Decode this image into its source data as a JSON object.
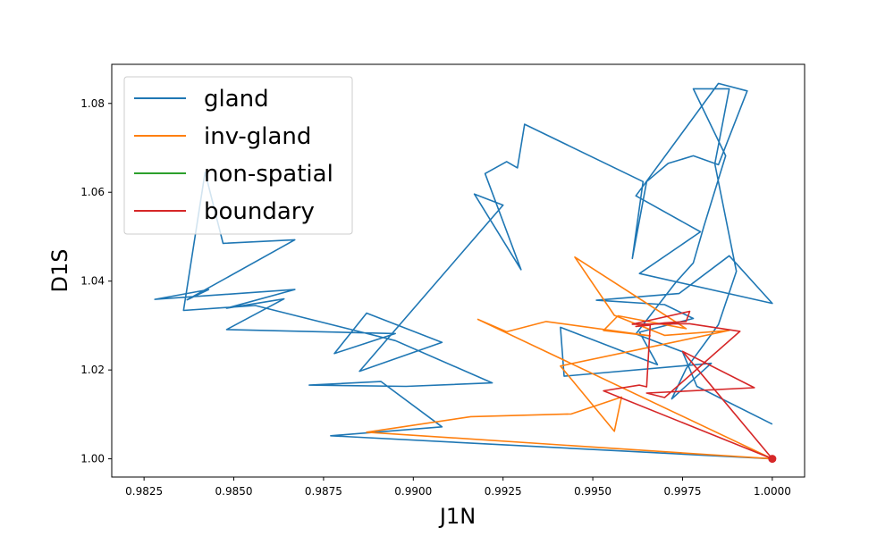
{
  "chart_data": {
    "type": "line",
    "xlabel": "J1N",
    "ylabel": "D1S",
    "xlim": [
      0.9816,
      1.0009
    ],
    "ylim": [
      0.9959,
      1.0888
    ],
    "xticks": [
      {
        "value": 0.9825,
        "label": "0.9825"
      },
      {
        "value": 0.985,
        "label": "0.9850"
      },
      {
        "value": 0.9875,
        "label": "0.9875"
      },
      {
        "value": 0.99,
        "label": "0.9900"
      },
      {
        "value": 0.9925,
        "label": "0.9925"
      },
      {
        "value": 0.995,
        "label": "0.9950"
      },
      {
        "value": 0.9975,
        "label": "0.9975"
      },
      {
        "value": 1.0,
        "label": "1.0000"
      }
    ],
    "yticks": [
      {
        "value": 1.0,
        "label": "1.00"
      },
      {
        "value": 1.02,
        "label": "1.02"
      },
      {
        "value": 1.04,
        "label": "1.04"
      },
      {
        "value": 1.06,
        "label": "1.06"
      },
      {
        "value": 1.08,
        "label": "1.08"
      }
    ],
    "grid": false,
    "legend_position": "top-left",
    "series": [
      {
        "name": "gland",
        "color": "#1f77b4",
        "x": [
          1.0,
          0.9877,
          0.9908,
          0.9891,
          0.9871,
          0.9898,
          0.9922,
          0.9895,
          0.9856,
          0.9836,
          0.9842,
          0.9847,
          0.9867,
          0.9837,
          0.9843,
          0.9828,
          0.9867,
          0.9848,
          0.9864,
          0.9848,
          0.9895,
          0.9878,
          0.9887,
          0.9908,
          0.9885,
          0.9925,
          0.9917,
          0.993,
          0.992,
          0.9926,
          0.9929,
          0.9931,
          0.9964,
          0.9961,
          0.9965,
          0.9971,
          0.9978,
          0.9985,
          0.9993,
          0.9985,
          0.9962,
          0.998,
          0.9963,
          1.0,
          0.9988,
          0.9974,
          0.9951,
          0.997,
          0.9978,
          0.9963,
          0.9968,
          0.9941,
          0.9942,
          0.9983,
          0.9972,
          0.9976,
          0.9985,
          0.999,
          0.9984,
          0.9988,
          0.9978,
          0.9987,
          0.9981,
          0.9978,
          0.9973,
          0.9962,
          0.9975,
          0.9979,
          1.0
        ],
        "y": [
          1.0,
          1.0052,
          1.0072,
          1.0174,
          1.0166,
          1.0163,
          1.0171,
          1.0266,
          1.0345,
          1.0334,
          1.0645,
          1.0485,
          1.0493,
          1.0358,
          1.0381,
          1.0359,
          1.0381,
          1.0339,
          1.036,
          1.0291,
          1.0282,
          1.0237,
          1.0328,
          1.0262,
          1.0197,
          1.0571,
          1.0596,
          1.0426,
          1.0642,
          1.0669,
          1.0655,
          1.0753,
          1.0624,
          1.0451,
          1.0624,
          1.0665,
          1.0682,
          1.0662,
          1.0828,
          1.0845,
          1.0592,
          1.0511,
          1.0417,
          1.035,
          1.0457,
          1.0372,
          1.0357,
          1.0347,
          1.0316,
          1.0285,
          1.0212,
          1.0296,
          1.0186,
          1.0215,
          1.0135,
          1.0203,
          1.0302,
          1.0422,
          1.0664,
          1.0833,
          1.0833,
          1.0682,
          1.0525,
          1.0441,
          1.0396,
          1.0281,
          1.0241,
          1.0163,
          1.0078
        ]
      },
      {
        "name": "inv-gland",
        "color": "#ff7f0e",
        "x": [
          1.0,
          0.9887,
          0.9916,
          0.9944,
          0.9958,
          0.9956,
          0.9941,
          0.9988,
          0.997,
          0.9956,
          0.9945,
          0.9976,
          0.9957,
          0.9953,
          0.9966,
          0.9937,
          0.9926,
          0.9918,
          1.0
        ],
        "y": [
          1.0,
          1.006,
          1.0095,
          1.0101,
          1.0139,
          1.0062,
          1.0209,
          1.0289,
          1.0278,
          1.0323,
          1.0454,
          1.0293,
          1.0322,
          1.0289,
          1.0277,
          1.0309,
          1.0286,
          1.0314,
          1.0
        ]
      },
      {
        "name": "non-spatial",
        "color": "#2ca02c",
        "x": [],
        "y": []
      },
      {
        "name": "boundary",
        "color": "#d62728",
        "x": [
          1.0,
          0.9953,
          0.9963,
          0.9965,
          0.9966,
          0.9962,
          0.997,
          0.9976,
          0.9977,
          0.9961,
          0.9977,
          0.9991,
          0.997,
          0.9965,
          0.9995,
          0.9975,
          1.0
        ],
        "y": [
          1.0,
          1.0153,
          1.0166,
          1.0162,
          1.0301,
          1.0298,
          1.0306,
          1.0309,
          1.0332,
          1.0303,
          1.0304,
          1.0287,
          1.0138,
          1.0148,
          1.016,
          1.0242,
          1.0
        ]
      }
    ],
    "marker": {
      "x": 1.0,
      "y": 1.0,
      "color": "#d62728"
    }
  }
}
